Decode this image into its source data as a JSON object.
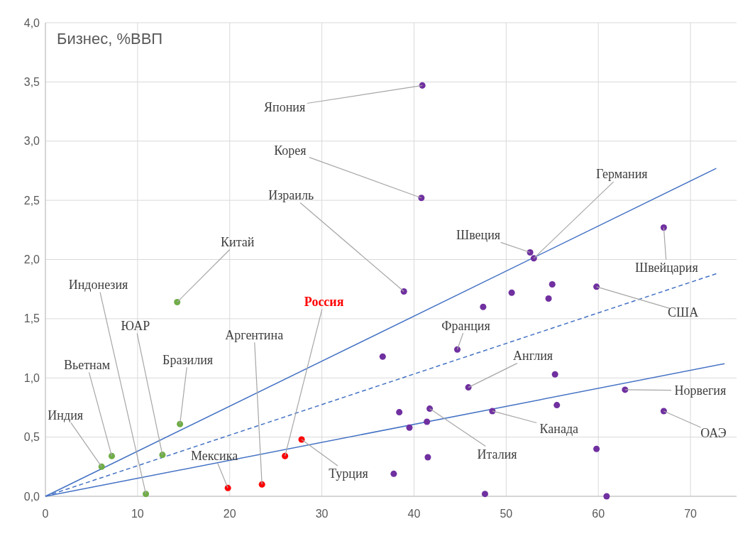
{
  "chart_data": {
    "type": "scatter",
    "title": "Бизнес, %ВВП",
    "xlim": [
      0,
      75
    ],
    "ylim": [
      0,
      4
    ],
    "xticks": [
      0,
      10,
      20,
      30,
      40,
      50,
      60,
      70
    ],
    "yticks": [
      {
        "value": 0,
        "label": "0,0"
      },
      {
        "value": 0.5,
        "label": "0,5"
      },
      {
        "value": 1,
        "label": "1,0"
      },
      {
        "value": 1.5,
        "label": "1,5"
      },
      {
        "value": 2,
        "label": "2,0"
      },
      {
        "value": 2.5,
        "label": "2,5"
      },
      {
        "value": 3,
        "label": "3,0"
      },
      {
        "value": 3.5,
        "label": "3,5"
      },
      {
        "value": 4,
        "label": "4,0"
      }
    ],
    "grid": true,
    "marker": "circle",
    "series": [
      {
        "type": "line",
        "color": "#4472c4",
        "marker": "none",
        "line_style": "solid",
        "x": [
          0,
          72.8
        ],
        "values": [
          0,
          2.77
        ]
      },
      {
        "type": "line",
        "color": "#4472c4",
        "marker": "none",
        "line_style": "dashed",
        "x": [
          0,
          72.8
        ],
        "values": [
          0,
          1.88
        ]
      },
      {
        "type": "line",
        "color": "#4472c4",
        "marker": "none",
        "line_style": "solid",
        "x": [
          0,
          73.7
        ],
        "values": [
          0,
          1.12
        ]
      },
      {
        "type": "scatter",
        "color": "#70ad47",
        "x": [
          6.1,
          7.2,
          12.7,
          10.9,
          14.6,
          14.3
        ],
        "values": [
          0.25,
          0.34,
          0.35,
          0.02,
          0.61,
          1.64
        ]
      },
      {
        "type": "scatter",
        "color": "#ff0000",
        "x": [
          19.8,
          23.5,
          26.0,
          27.8
        ],
        "values": [
          0.07,
          0.1,
          0.34,
          0.48
        ]
      },
      {
        "type": "scatter",
        "color": "#7030a0",
        "x": [
          40.9,
          40.8,
          38.9,
          52.6,
          53.0,
          67.1,
          59.8,
          44.7,
          45.9,
          62.9,
          67.1,
          48.5,
          41.7,
          36.6,
          47.5,
          50.6,
          55.0,
          54.6,
          55.3,
          55.5,
          38.4,
          39.5,
          41.4,
          41.5,
          37.8,
          47.7,
          59.8,
          60.9
        ],
        "values": [
          3.47,
          2.52,
          1.73,
          2.06,
          2.01,
          2.27,
          1.77,
          1.24,
          0.92,
          0.9,
          0.72,
          0.72,
          0.74,
          1.18,
          1.6,
          1.72,
          1.79,
          1.67,
          1.03,
          0.77,
          0.71,
          0.58,
          0.63,
          0.33,
          0.19,
          0.02,
          0.4,
          0.0
        ]
      }
    ],
    "annotations": [
      {
        "text": "Япония",
        "x": 40.9,
        "y": 3.47
      },
      {
        "text": "Корея",
        "x": 40.8,
        "y": 2.52
      },
      {
        "text": "Израиль",
        "x": 38.9,
        "y": 1.73
      },
      {
        "text": "Германия",
        "x": 53.0,
        "y": 2.01
      },
      {
        "text": "Швеция",
        "x": 52.6,
        "y": 2.06
      },
      {
        "text": "Швейцария",
        "x": 67.1,
        "y": 2.27
      },
      {
        "text": "США",
        "x": 59.8,
        "y": 1.77
      },
      {
        "text": "Франция",
        "x": 44.7,
        "y": 1.24
      },
      {
        "text": "Англия",
        "x": 45.9,
        "y": 0.92
      },
      {
        "text": "Норвегия",
        "x": 62.9,
        "y": 0.9
      },
      {
        "text": "ОАЭ",
        "x": 67.1,
        "y": 0.72
      },
      {
        "text": "Канада",
        "x": 48.5,
        "y": 0.72
      },
      {
        "text": "Италия",
        "x": 41.7,
        "y": 0.74
      },
      {
        "text": "Турция",
        "x": 27.8,
        "y": 0.48
      },
      {
        "text": "Россия",
        "x": 26.0,
        "y": 0.34
      },
      {
        "text": "Мексика",
        "x": 19.8,
        "y": 0.07
      },
      {
        "text": "Аргентина",
        "x": 23.5,
        "y": 0.1
      },
      {
        "text": "Бразилия",
        "x": 14.6,
        "y": 0.61
      },
      {
        "text": "ЮАР",
        "x": 12.7,
        "y": 0.35
      },
      {
        "text": "Индонезия",
        "x": 10.9,
        "y": 0.02
      },
      {
        "text": "Вьетнам",
        "x": 7.2,
        "y": 0.34
      },
      {
        "text": "Индия",
        "x": 6.1,
        "y": 0.25
      },
      {
        "text": "Китай",
        "x": 14.3,
        "y": 1.64
      }
    ]
  }
}
